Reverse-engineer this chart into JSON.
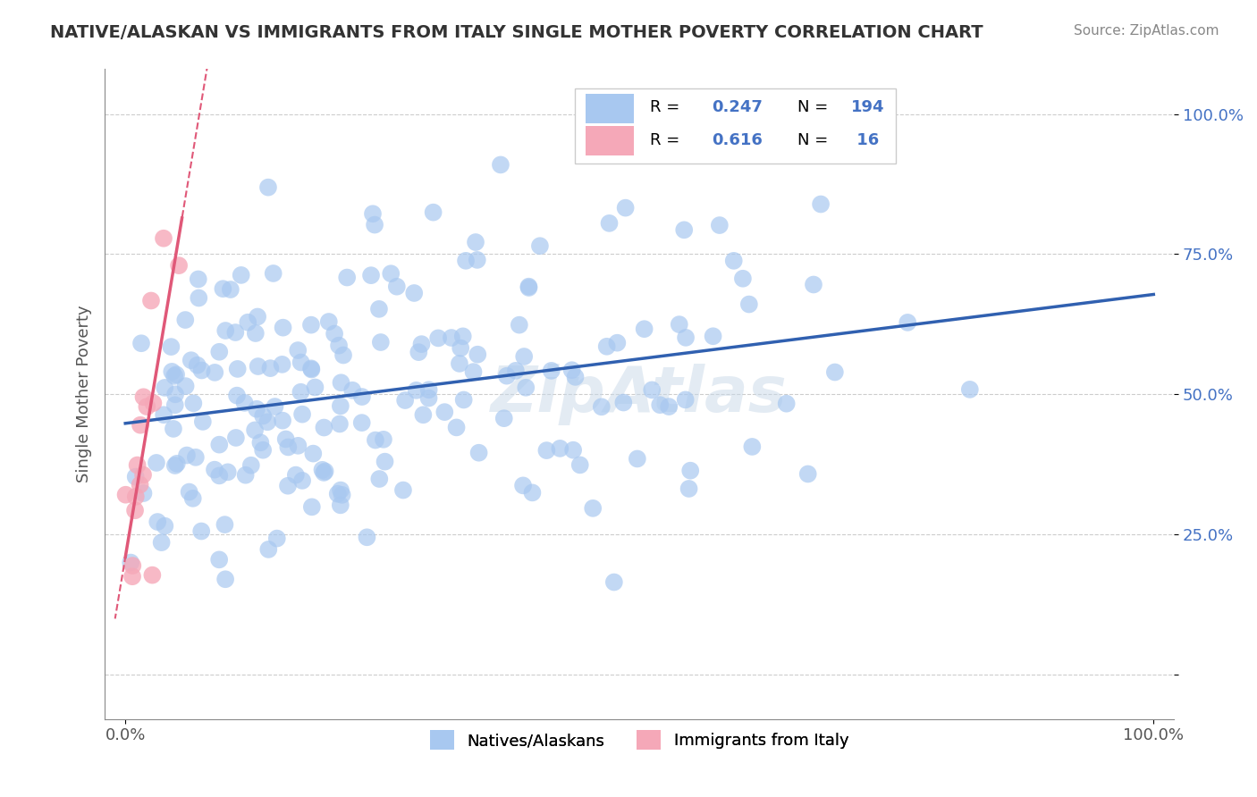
{
  "title": "NATIVE/ALASKAN VS IMMIGRANTS FROM ITALY SINGLE MOTHER POVERTY CORRELATION CHART",
  "source": "Source: ZipAtlas.com",
  "ylabel_label": "Single Mother Poverty",
  "xlim": [
    -0.02,
    1.02
  ],
  "ylim": [
    -0.08,
    1.08
  ],
  "blue_R": 0.247,
  "blue_N": 194,
  "pink_R": 0.616,
  "pink_N": 16,
  "blue_color": "#a8c8f0",
  "blue_line_color": "#3060b0",
  "pink_color": "#f5a8b8",
  "pink_line_color": "#e05878",
  "legend_label_blue": "Natives/Alaskans",
  "legend_label_pink": "Immigrants from Italy",
  "watermark": "ZipAtlas",
  "seed_blue": 12345,
  "seed_pink": 99999
}
